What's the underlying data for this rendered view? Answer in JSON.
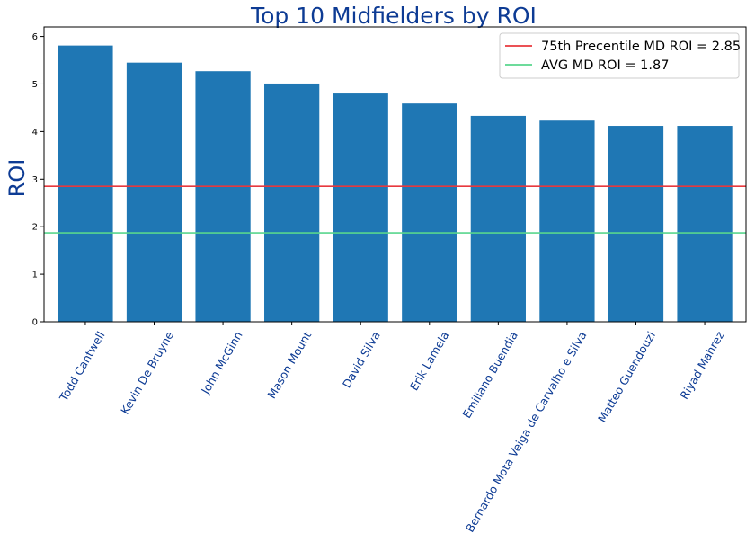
{
  "chart_data": {
    "type": "bar",
    "title": "Top 10 Midfielders by ROI",
    "xlabel": "",
    "ylabel": "ROI",
    "categories": [
      "Todd Cantwell",
      "Kevin De Bruyne",
      "John McGinn",
      "Mason Mount",
      "David Silva",
      "Erik Lamela",
      "Emiliano Buendia",
      "Bernardo Mota Veiga de Carvalho e Silva",
      "Matteo Guendouzi",
      "Riyad Mahrez"
    ],
    "values": [
      5.81,
      5.45,
      5.27,
      5.01,
      4.8,
      4.59,
      4.33,
      4.23,
      4.12,
      4.12
    ],
    "ylim": [
      0,
      6.2
    ],
    "yticks": [
      0,
      1,
      2,
      3,
      4,
      5,
      6
    ],
    "grid": false,
    "bar_color": "#1f77b4",
    "label_color": "#0d3b94",
    "reference_lines": [
      {
        "label": "75th Precentile MD ROI = 2.85",
        "value": 2.85,
        "color": "#e8383d"
      },
      {
        "label": "AVG MD ROI = 1.87",
        "value": 1.87,
        "color": "#58d68d"
      }
    ],
    "legend_position": "top-right"
  }
}
